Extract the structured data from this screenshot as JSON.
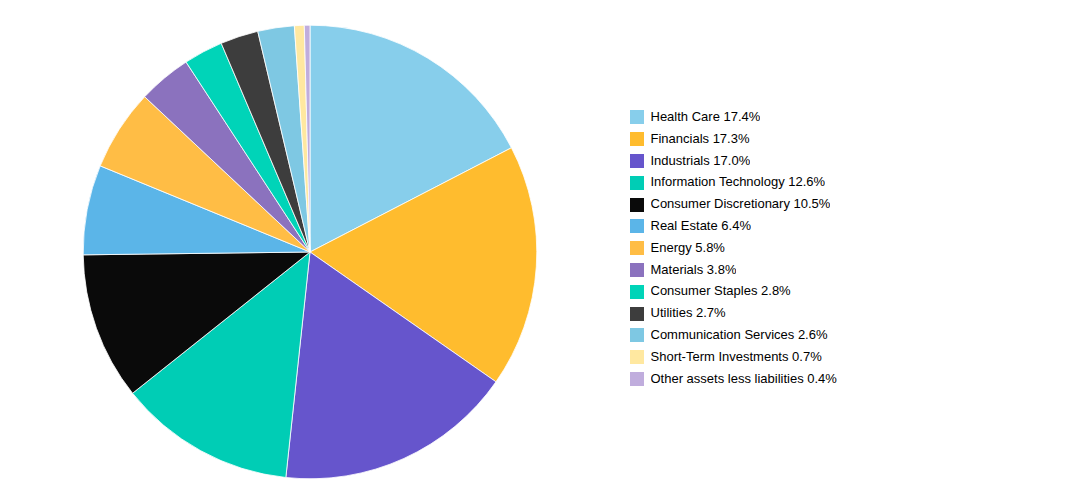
{
  "chart_data": {
    "type": "pie",
    "categories": [
      "Health Care 17.4%",
      "Financials 17.3%",
      "Industrials 17.0%",
      "Information Technology 12.6%",
      "Consumer Discretionary 10.5%",
      "Real Estate 6.4%",
      "Energy 5.8%",
      "Materials 3.8%",
      "Consumer Staples 2.8%",
      "Utilities 2.7%",
      "Communication Services 2.6%",
      "Short-Term Investments 0.7%",
      "Other assets less liabilities 0.4%"
    ],
    "values": [
      17.4,
      17.3,
      17.0,
      12.6,
      10.5,
      6.4,
      5.8,
      3.8,
      2.8,
      2.7,
      2.6,
      0.7,
      0.4
    ],
    "colors": [
      "#87CEEB",
      "#FFBC2E",
      "#6655CC",
      "#00CDB5",
      "#0A0A0A",
      "#5BB5E8",
      "#FFBD45",
      "#8B72BE",
      "#00D4B8",
      "#3D3D3D",
      "#7EC8E3",
      "#FFE8A0",
      "#C0ADDD"
    ],
    "legend": "right"
  }
}
